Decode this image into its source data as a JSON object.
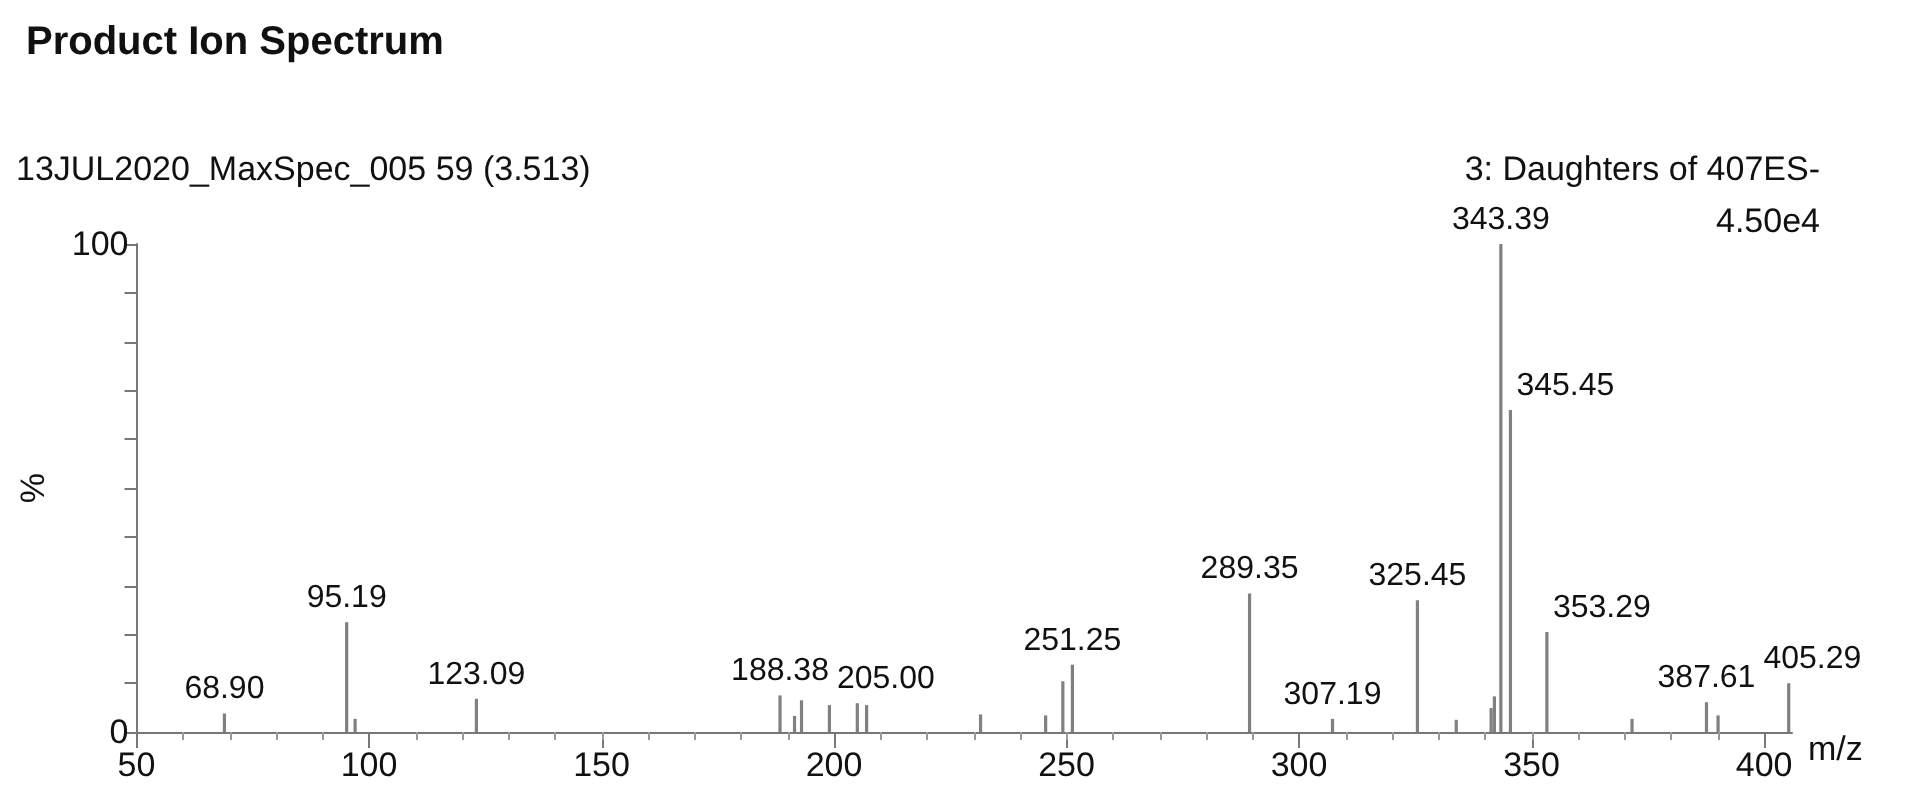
{
  "chart_data": {
    "type": "bar",
    "title": "Product Ion Spectrum",
    "xlabel": "m/z",
    "ylabel": "%",
    "x": [
      68.9,
      95.19,
      97,
      123.09,
      188.38,
      191.5,
      193,
      199,
      205.0,
      207,
      231.5,
      245.5,
      249.2,
      251.25,
      289.35,
      307.19,
      325.45,
      333.8,
      341.3,
      342.0,
      343.39,
      345.45,
      353.29,
      371.6,
      387.61,
      390.1,
      405.29
    ],
    "series": [
      {
        "color": "#808080",
        "values": [
          3.8,
          22.5,
          2.7,
          6.8,
          7.5,
          3.3,
          6.5,
          5.5,
          5.9,
          5.5,
          3.6,
          3.4,
          10.4,
          13.8,
          28.4,
          2.7,
          27.0,
          2.5,
          4.9,
          7.3,
          100,
          66.0,
          20.5,
          2.7,
          6.1,
          3.4,
          10.0
        ]
      }
    ],
    "xlim": [
      50,
      406
    ],
    "xticks": [
      50,
      100,
      150,
      200,
      250,
      300,
      350,
      400
    ],
    "ylim": [
      0,
      100
    ],
    "yticks": [
      0,
      {
        "value": 10,
        "label": null
      },
      {
        "value": 20,
        "label": null
      },
      {
        "value": 30,
        "label": null
      },
      {
        "value": 40,
        "label": null
      },
      {
        "value": 50,
        "label": null
      },
      {
        "value": 60,
        "label": null
      },
      {
        "value": 70,
        "label": null
      },
      {
        "value": 80,
        "label": null
      },
      {
        "value": 90,
        "label": null
      },
      100
    ],
    "grid": false,
    "annotations": [
      "13JUL2020_MaxSpec_005 59 (3.513)",
      "3: Daughters of 407ES-",
      "4.50e4",
      {
        "text": "68.90",
        "x": 68.9,
        "y": 3.8
      },
      {
        "text": "95.19",
        "x": 95.19,
        "y": 22.5
      },
      {
        "text": "123.09",
        "x": 123.09,
        "y": 6.8
      },
      {
        "text": "188.38",
        "x": 188.38,
        "y": 7.5
      },
      {
        "text": "205.00",
        "x": 205.0,
        "y": 5.9
      },
      {
        "text": "251.25",
        "x": 251.25,
        "y": 13.8
      },
      {
        "text": "289.35",
        "x": 289.35,
        "y": 28.4
      },
      {
        "text": "307.19",
        "x": 307.19,
        "y": 2.7
      },
      {
        "text": "325.45",
        "x": 325.45,
        "y": 27.0
      },
      {
        "text": "343.39",
        "x": 343.39,
        "y": 100
      },
      {
        "text": "345.45",
        "x": 345.45,
        "y": 66.0
      },
      {
        "text": "353.29",
        "x": 353.29,
        "y": 20.5
      },
      {
        "text": "387.61",
        "x": 387.61,
        "y": 6.1
      },
      {
        "text": "405.29",
        "x": 405.29,
        "y": 10.0
      }
    ]
  }
}
